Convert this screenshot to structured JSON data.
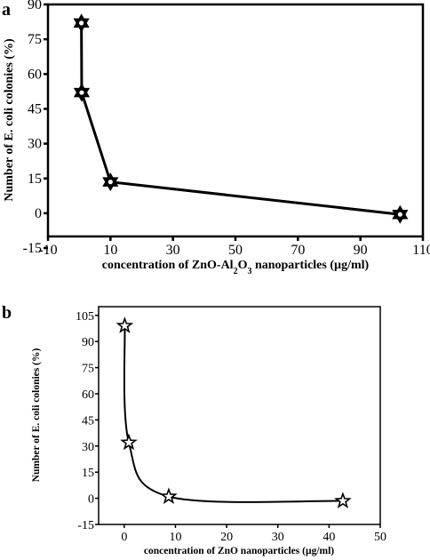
{
  "chart_data": [
    {
      "panel": "a",
      "type": "line",
      "xlabel_parts": [
        "concentration of ZnO-Al",
        "2",
        "O",
        "3",
        " nanoparticles (µg/ml)"
      ],
      "ylabel": "Number of E. coli colonies (%)",
      "xlim": [
        -10,
        110
      ],
      "ylim": [
        -10,
        90
      ],
      "xticks": [
        "-10",
        "10",
        "30",
        "50",
        "70",
        "90",
        "110"
      ],
      "xtick_values": [
        -10,
        10,
        30,
        50,
        70,
        90,
        110
      ],
      "yticks": [
        "-15",
        "0",
        "15",
        "30",
        "45",
        "60",
        "75",
        "90"
      ],
      "ytick_values": [
        -15,
        0,
        15,
        30,
        45,
        60,
        75,
        90
      ],
      "series": [
        {
          "x": [
            0.7,
            0.8,
            10,
            102.7
          ],
          "y": [
            82,
            52,
            13.5,
            -0.5
          ],
          "marker": "star6-filled",
          "curve": "straight"
        }
      ],
      "grid": false
    },
    {
      "panel": "b",
      "type": "line",
      "xlabel": "concentration of ZnO nanoparticles (µg/ml)",
      "ylabel": "Number of E. coli colonies (%)",
      "xlim": [
        -5,
        50
      ],
      "ylim": [
        -15,
        110
      ],
      "xticks": [
        "0",
        "10",
        "20",
        "30",
        "40",
        "50"
      ],
      "xtick_values": [
        0,
        10,
        20,
        30,
        40,
        50
      ],
      "yticks": [
        "-15",
        "0",
        "15",
        "30",
        "45",
        "60",
        "75",
        "90",
        "105"
      ],
      "ytick_values": [
        -15,
        0,
        15,
        30,
        45,
        60,
        75,
        90,
        105
      ],
      "series": [
        {
          "x": [
            0.1,
            0.9,
            8.7,
            42.7
          ],
          "y": [
            99,
            32,
            1,
            -1.5
          ],
          "marker": "star5-open",
          "curve": "smooth"
        }
      ],
      "grid": false
    }
  ]
}
